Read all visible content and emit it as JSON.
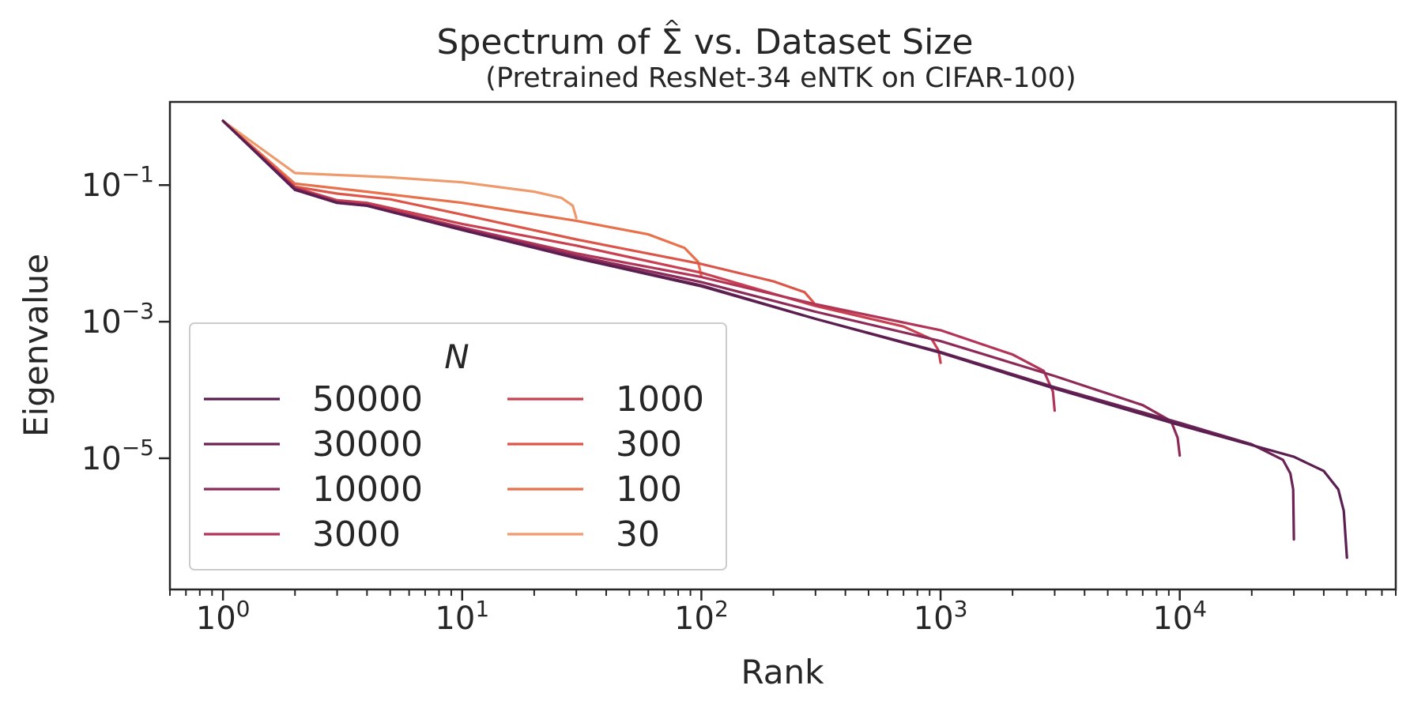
{
  "chart_data": {
    "type": "line",
    "title": "Spectrum of Σ̂ vs. Dataset Size",
    "title_parts": {
      "before": "Spectrum of ",
      "symbol": "Σ",
      "hat": "^",
      "after": " vs. Dataset Size"
    },
    "subtitle": "(Pretrained ResNet-34 eNTK on CIFAR-100)",
    "xlabel": "Rank",
    "ylabel": "Eigenvalue",
    "xscale": "log",
    "yscale": "log",
    "xlim": [
      0.6,
      80000
    ],
    "ylim": [
      1.2e-07,
      1.65
    ],
    "x_ticks": [
      {
        "value": 1,
        "base": "10",
        "exp": "0"
      },
      {
        "value": 10,
        "base": "10",
        "exp": "1"
      },
      {
        "value": 100,
        "base": "10",
        "exp": "2"
      },
      {
        "value": 1000,
        "base": "10",
        "exp": "3"
      },
      {
        "value": 10000,
        "base": "10",
        "exp": "4"
      }
    ],
    "y_ticks": [
      {
        "value": 0.1,
        "base": "10",
        "exp": "−1"
      },
      {
        "value": 0.001,
        "base": "10",
        "exp": "−3"
      },
      {
        "value": 1e-05,
        "base": "10",
        "exp": "−5"
      }
    ],
    "legend": {
      "title": "N",
      "placement": "lower-left",
      "columns": 2
    },
    "series": [
      {
        "name": "50000",
        "color": "#5b1e51",
        "points": [
          [
            1,
            0.87
          ],
          [
            2,
            0.085
          ],
          [
            3,
            0.055
          ],
          [
            4,
            0.05
          ],
          [
            10,
            0.022
          ],
          [
            30,
            0.0085
          ],
          [
            100,
            0.0033
          ],
          [
            300,
            0.0011
          ],
          [
            1000,
            0.00035
          ],
          [
            3000,
            0.000105
          ],
          [
            10000,
            3.05e-05
          ],
          [
            30000,
            1.05e-05
          ],
          [
            40000,
            6.5e-06
          ],
          [
            46000,
            3.5e-06
          ],
          [
            48500,
            1.7e-06
          ],
          [
            50000,
            3.5e-07
          ]
        ]
      },
      {
        "name": "30000",
        "color": "#6c2354",
        "points": [
          [
            1,
            0.87
          ],
          [
            2,
            0.086
          ],
          [
            3,
            0.055
          ],
          [
            4,
            0.05
          ],
          [
            10,
            0.022
          ],
          [
            30,
            0.0086
          ],
          [
            100,
            0.0034
          ],
          [
            300,
            0.0011
          ],
          [
            1000,
            0.00036
          ],
          [
            3000,
            0.00011
          ],
          [
            10000,
            3.3e-05
          ],
          [
            20000,
            1.6e-05
          ],
          [
            27000,
            9.5e-06
          ],
          [
            29000,
            6e-06
          ],
          [
            29800,
            3.5e-06
          ],
          [
            30000,
            6.5e-07
          ]
        ]
      },
      {
        "name": "10000",
        "color": "#8c2a58",
        "points": [
          [
            1,
            0.87
          ],
          [
            2,
            0.088
          ],
          [
            3,
            0.056
          ],
          [
            4,
            0.05
          ],
          [
            10,
            0.023
          ],
          [
            30,
            0.0092
          ],
          [
            100,
            0.0038
          ],
          [
            300,
            0.0014
          ],
          [
            1000,
            0.00052
          ],
          [
            3000,
            0.00016
          ],
          [
            7000,
            6e-05
          ],
          [
            9200,
            3.5e-05
          ],
          [
            9800,
            2e-05
          ],
          [
            10000,
            1.1e-05
          ]
        ]
      },
      {
        "name": "3000",
        "color": "#b23457",
        "points": [
          [
            1,
            0.87
          ],
          [
            2,
            0.09
          ],
          [
            3,
            0.057
          ],
          [
            4,
            0.052
          ],
          [
            10,
            0.024
          ],
          [
            30,
            0.01
          ],
          [
            100,
            0.0045
          ],
          [
            300,
            0.0018
          ],
          [
            1000,
            0.00075
          ],
          [
            2000,
            0.00033
          ],
          [
            2700,
            0.00019
          ],
          [
            2950,
            9.5e-05
          ],
          [
            3000,
            5e-05
          ]
        ]
      },
      {
        "name": "1000",
        "color": "#c94050",
        "points": [
          [
            1,
            0.87
          ],
          [
            2,
            0.092
          ],
          [
            3,
            0.06
          ],
          [
            4,
            0.055
          ],
          [
            10,
            0.027
          ],
          [
            30,
            0.013
          ],
          [
            100,
            0.0052
          ],
          [
            300,
            0.0017
          ],
          [
            700,
            0.00085
          ],
          [
            920,
            0.00055
          ],
          [
            980,
            0.00038
          ],
          [
            1000,
            0.00025
          ]
        ]
      },
      {
        "name": "300",
        "color": "#dc5548",
        "points": [
          [
            1,
            0.87
          ],
          [
            2,
            0.095
          ],
          [
            3,
            0.075
          ],
          [
            5,
            0.062
          ],
          [
            10,
            0.037
          ],
          [
            30,
            0.016
          ],
          [
            100,
            0.007
          ],
          [
            200,
            0.0039
          ],
          [
            270,
            0.0027
          ],
          [
            295,
            0.0019
          ]
        ]
      },
      {
        "name": "100",
        "color": "#e8704b",
        "points": [
          [
            1,
            0.87
          ],
          [
            2,
            0.105
          ],
          [
            4,
            0.08
          ],
          [
            10,
            0.055
          ],
          [
            30,
            0.03
          ],
          [
            60,
            0.019
          ],
          [
            85,
            0.012
          ],
          [
            97,
            0.0075
          ],
          [
            100,
            0.0046
          ]
        ]
      },
      {
        "name": "30",
        "color": "#ee9a6c",
        "points": [
          [
            1,
            0.87
          ],
          [
            2,
            0.15
          ],
          [
            5,
            0.13
          ],
          [
            10,
            0.11
          ],
          [
            20,
            0.08
          ],
          [
            26,
            0.065
          ],
          [
            29,
            0.05
          ],
          [
            30,
            0.033
          ]
        ]
      }
    ]
  }
}
